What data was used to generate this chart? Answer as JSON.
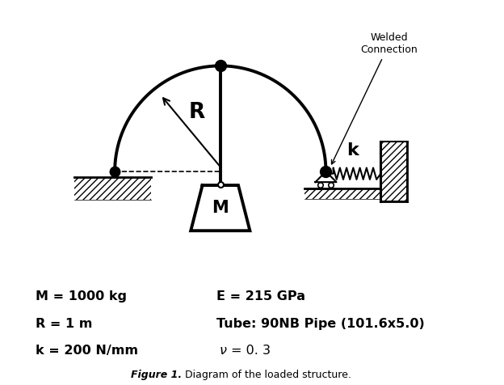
{
  "bg_color": "#ffffff",
  "line_color": "#000000",
  "figsize": [
    6.24,
    4.76
  ],
  "dpi": 100,
  "text_M": "M",
  "text_R": "R",
  "text_k": "k",
  "label_welded": "Welded\nConnection",
  "p1_left": "M = 1000 kg",
  "p1_right": "E = 215 GPa",
  "p2_left": "R = 1 m",
  "p2_right": "Tube: 90NB Pipe (101.6x5.0)",
  "p3_left": "k = 200 N/mm",
  "p3_right": "ν = 0. 3",
  "caption_bold": "Figure 1.",
  "caption_normal": " Diagram of the loaded structure."
}
